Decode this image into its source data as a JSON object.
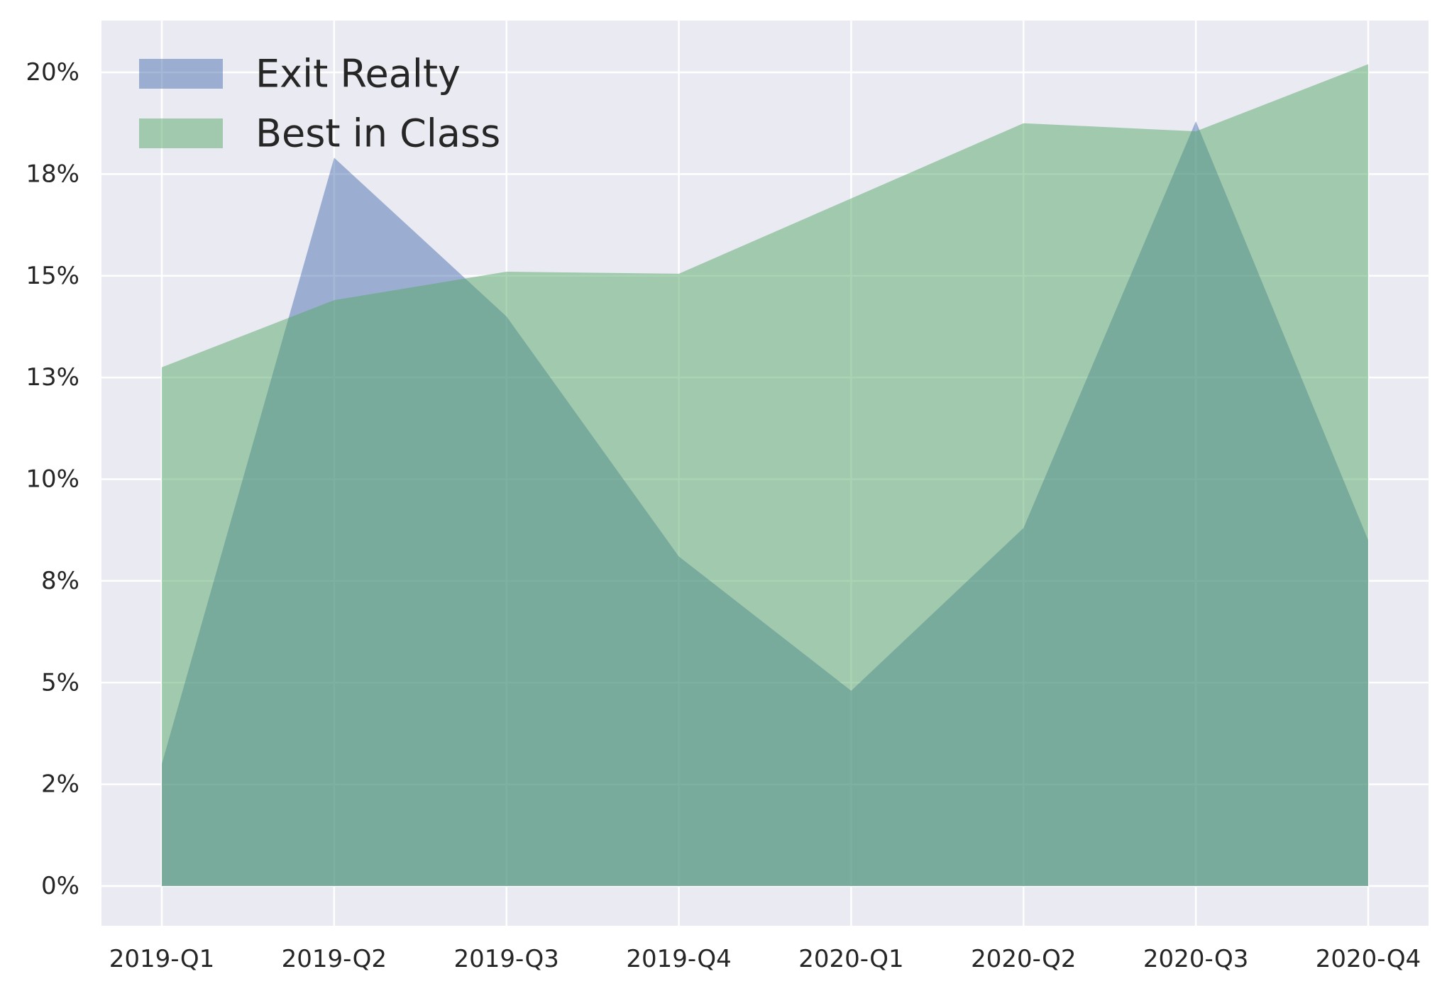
{
  "chart_data": {
    "type": "area",
    "categories": [
      "2019-Q1",
      "2019-Q2",
      "2019-Q3",
      "2019-Q4",
      "2020-Q1",
      "2020-Q2",
      "2020-Q3",
      "2020-Q4"
    ],
    "series": [
      {
        "name": "Exit Realty",
        "color": "#4c72b0",
        "values": [
          3.0,
          17.9,
          14.0,
          8.1,
          4.8,
          8.8,
          18.8,
          8.5
        ]
      },
      {
        "name": "Best in Class",
        "color": "#55a868",
        "values": [
          12.75,
          14.4,
          15.1,
          15.05,
          16.9,
          18.75,
          18.55,
          20.2
        ]
      }
    ],
    "yticks": [
      0,
      2.5,
      5,
      7.5,
      10,
      12.5,
      15,
      17.5,
      20
    ],
    "ytick_labels": [
      "0%",
      "2%",
      "5%",
      "8%",
      "10%",
      "13%",
      "15%",
      "18%",
      "20%"
    ],
    "ylim": [
      -1,
      21.3
    ],
    "title": "",
    "xlabel": "",
    "ylabel": "",
    "grid": true,
    "legend_position": "top-left",
    "background": "#eaeaf2"
  }
}
